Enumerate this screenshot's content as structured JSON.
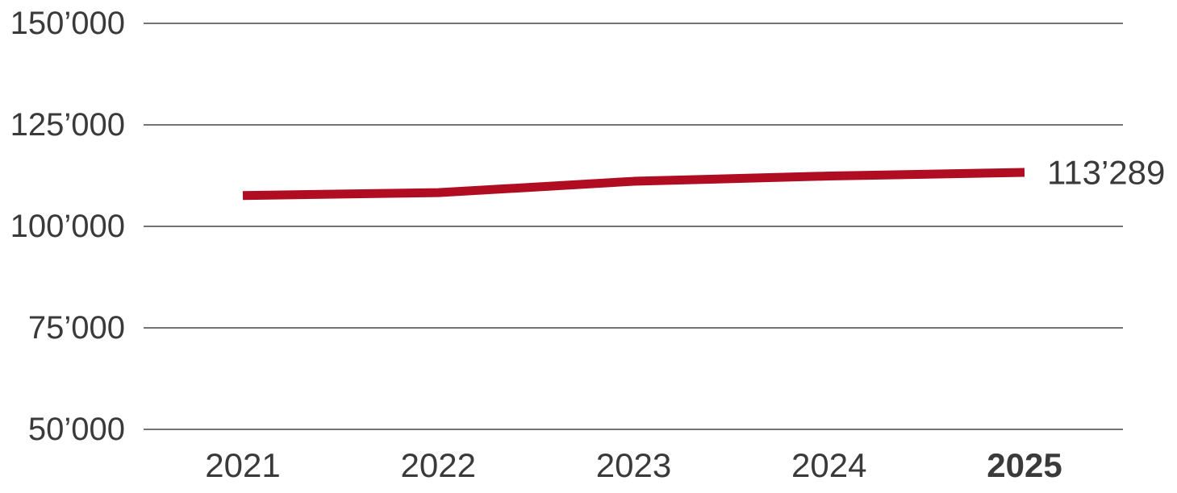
{
  "page": {
    "background": "#ffffff"
  },
  "chart_data": {
    "type": "line",
    "title": "",
    "xlabel": "",
    "ylabel": "",
    "categories": [
      "2021",
      "2022",
      "2023",
      "2024",
      "2025"
    ],
    "series": [
      {
        "name": "value",
        "color": "#b00d23",
        "values": [
          107600,
          108300,
          111100,
          112400,
          113289
        ]
      }
    ],
    "ylim": [
      50000,
      150000
    ],
    "yticks": [
      150000,
      125000,
      100000,
      75000,
      50000
    ],
    "ytick_labels": [
      "150’000",
      "125’000",
      "100’000",
      "75’000",
      "50’000"
    ],
    "grid": "horizontal-only",
    "legend": "none",
    "x_axis": {
      "emphasized_label": "2025"
    },
    "annotations": [
      {
        "text": "113’289",
        "attached_to": "last-point",
        "position": "right-of-line-end"
      }
    ],
    "colors": {
      "line": "#b00d23",
      "text": "#3a3a3a",
      "gridline": "#474747"
    }
  }
}
